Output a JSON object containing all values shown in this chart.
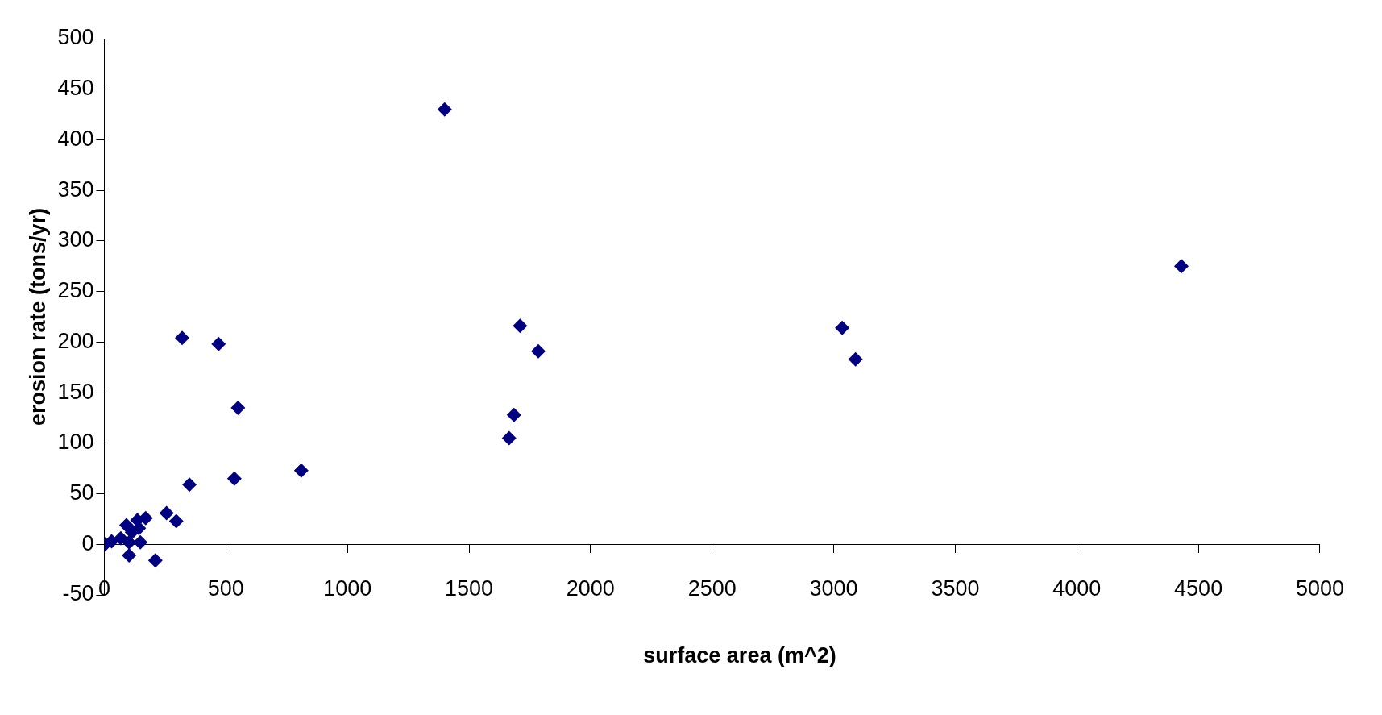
{
  "chart_data": {
    "type": "scatter",
    "xlabel": "surface area (m^2)",
    "ylabel": "erosion rate (tons/yr)",
    "xlim": [
      0,
      5000
    ],
    "xticks": [
      0,
      500,
      1000,
      1500,
      2000,
      2500,
      3000,
      3500,
      4000,
      4500,
      5000
    ],
    "ylim": [
      -50,
      500
    ],
    "yticks": [
      -50,
      0,
      50,
      100,
      150,
      200,
      250,
      300,
      350,
      400,
      450,
      500
    ],
    "grid": false,
    "legend": false,
    "marker": "diamond",
    "series": [
      {
        "color": "#000080",
        "x": [
          3,
          30,
          68,
          91,
          102,
          102,
          114,
          136,
          142,
          148,
          170,
          210,
          256,
          296,
          350,
          320,
          470,
          550,
          535,
          810,
          1400,
          1665,
          1685,
          1710,
          1785,
          3035,
          3090,
          4430
        ],
        "values": [
          0,
          3,
          6,
          19,
          2,
          -11,
          12,
          24,
          16,
          2,
          26,
          -16,
          31,
          23,
          59,
          204,
          198,
          135,
          65,
          73,
          430,
          105,
          128,
          216,
          191,
          214,
          183,
          275
        ]
      }
    ]
  }
}
